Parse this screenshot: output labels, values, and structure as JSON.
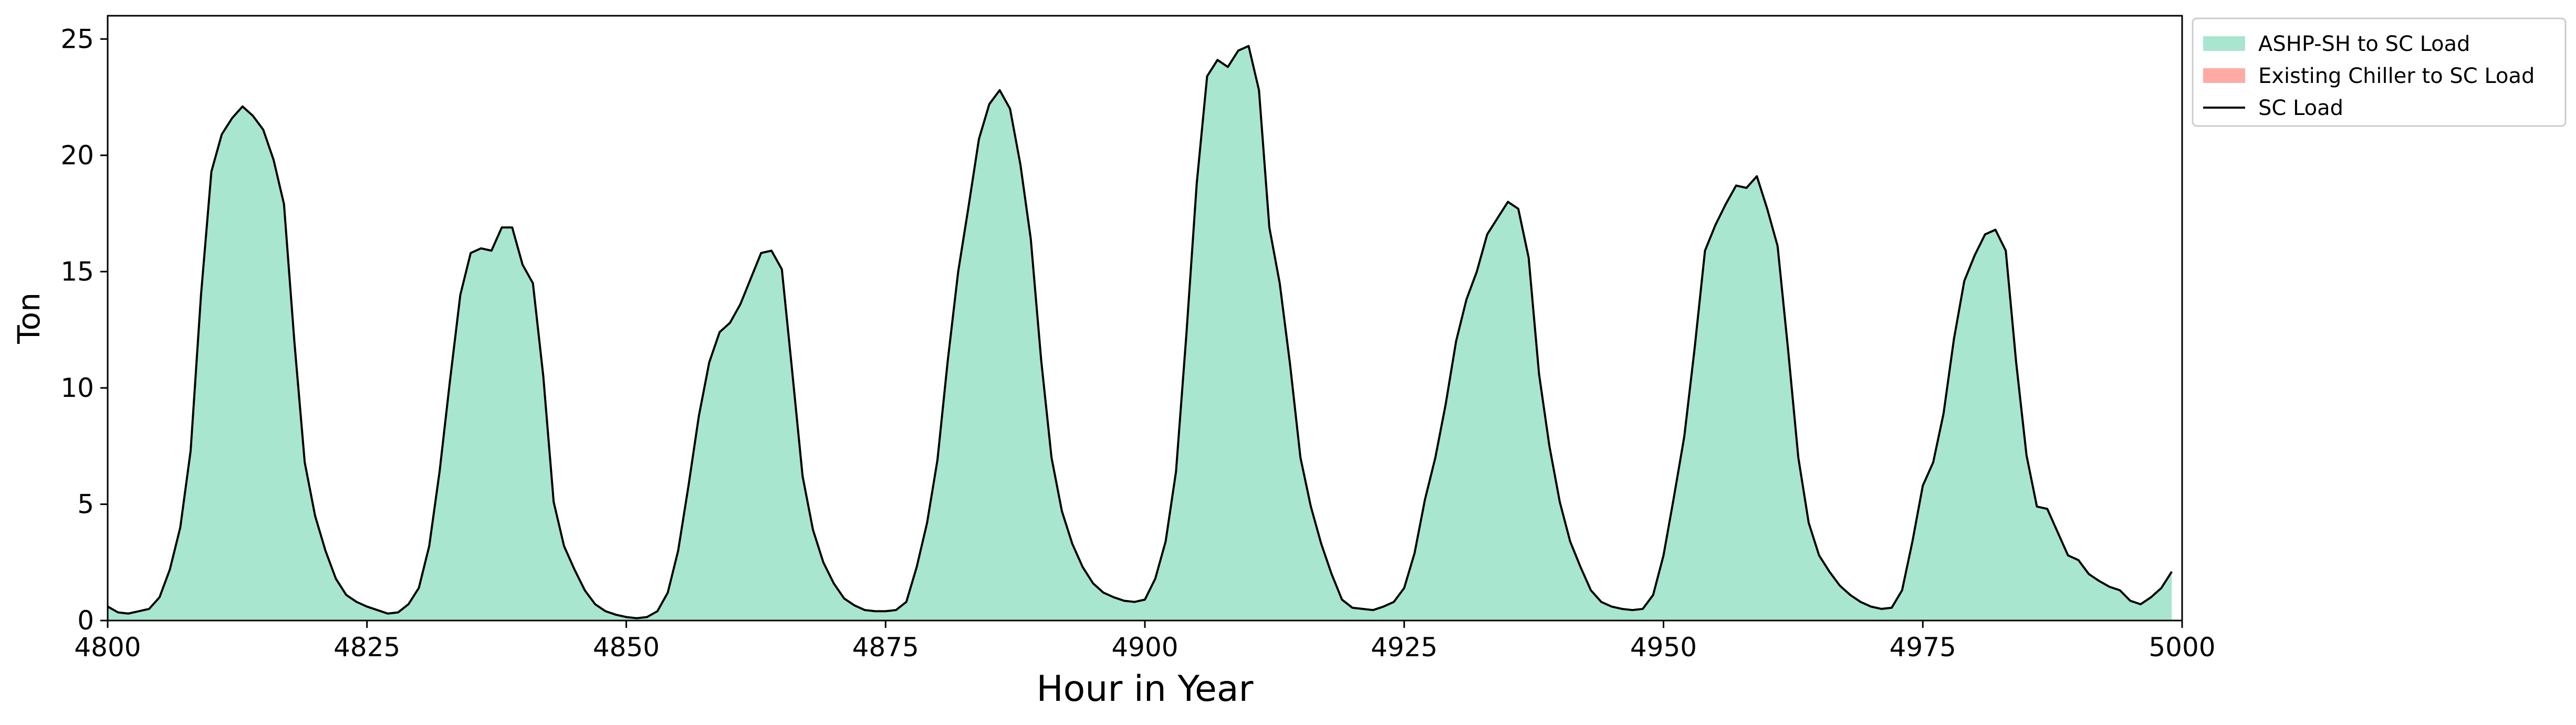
{
  "chart_data": {
    "type": "area",
    "xlabel": "Hour in Year",
    "ylabel": "Ton",
    "xlim": [
      4800,
      5000
    ],
    "ylim": [
      0,
      26
    ],
    "xticks": [
      "4800",
      "4825",
      "4850",
      "4875",
      "4900",
      "4925",
      "4950",
      "4975",
      "5000"
    ],
    "yticks": [
      "0",
      "5",
      "10",
      "15",
      "20",
      "25"
    ],
    "grid": false,
    "legend_position": "outside-top-right",
    "colors": {
      "ashp": "#a8e6cf",
      "chiller": "#ffaaa5",
      "load": "#000000"
    },
    "legend": [
      {
        "label": "ASHP-SH to SC Load",
        "kind": "patch",
        "color": "#a8e6cf"
      },
      {
        "label": "Existing Chiller to SC Load",
        "kind": "patch",
        "color": "#ffaaa5"
      },
      {
        "label": "SC Load",
        "kind": "line",
        "color": "#000000"
      }
    ],
    "x_start": 4800,
    "x_step": 1,
    "series": [
      {
        "name": "ASHP-SH to SC Load",
        "type": "area",
        "values": [
          0.6,
          0.35,
          0.3,
          0.4,
          0.5,
          1.0,
          2.2,
          4.0,
          7.3,
          14.0,
          19.3,
          20.9,
          21.6,
          22.1,
          21.7,
          21.1,
          19.8,
          17.9,
          12.0,
          6.8,
          4.5,
          3.0,
          1.8,
          1.1,
          0.8,
          0.6,
          0.45,
          0.3,
          0.35,
          0.7,
          1.4,
          3.2,
          6.4,
          10.3,
          14.0,
          15.8,
          16.0,
          15.9,
          16.9,
          16.9,
          15.3,
          14.5,
          10.5,
          5.1,
          3.2,
          2.2,
          1.3,
          0.7,
          0.4,
          0.25,
          0.15,
          0.1,
          0.15,
          0.4,
          1.2,
          3.0,
          5.8,
          8.8,
          11.1,
          12.4,
          12.8,
          13.6,
          14.7,
          15.8,
          15.9,
          15.1,
          10.7,
          6.2,
          3.9,
          2.5,
          1.6,
          0.95,
          0.65,
          0.45,
          0.4,
          0.4,
          0.45,
          0.8,
          2.3,
          4.2,
          6.9,
          11.2,
          15.0,
          17.8,
          20.7,
          22.2,
          22.8,
          22.0,
          19.6,
          16.4,
          11.2,
          7.0,
          4.7,
          3.3,
          2.3,
          1.6,
          1.2,
          1.0,
          0.85,
          0.8,
          0.9,
          1.8,
          3.4,
          6.4,
          12.3,
          18.8,
          23.4,
          24.1,
          23.8,
          24.5,
          24.7,
          22.8,
          16.9,
          14.5,
          11.0,
          7.0,
          4.9,
          3.3,
          2.0,
          0.9,
          0.55,
          0.5,
          0.45,
          0.6,
          0.8,
          1.4,
          2.9,
          5.2,
          7.0,
          9.3,
          12.0,
          13.8,
          15.0,
          16.6,
          17.3,
          18.0,
          17.7,
          15.6,
          10.6,
          7.5,
          5.1,
          3.4,
          2.3,
          1.3,
          0.8,
          0.6,
          0.5,
          0.45,
          0.5,
          1.1,
          2.8,
          5.3,
          7.9,
          11.7,
          15.9,
          17.0,
          17.9,
          18.7,
          18.6,
          19.1,
          17.7,
          16.1,
          11.7,
          7.0,
          4.2,
          2.8,
          2.1,
          1.5,
          1.1,
          0.8,
          0.6,
          0.5,
          0.55,
          1.3,
          3.4,
          5.8,
          6.8,
          8.9,
          12.1,
          14.6,
          15.7,
          16.6,
          16.8,
          15.9,
          11.1,
          7.1,
          4.9,
          4.8,
          3.8,
          2.8,
          2.6,
          2.0,
          1.7,
          1.45,
          1.3,
          0.85,
          0.7,
          1.0,
          1.4,
          2.1
        ]
      },
      {
        "name": "Existing Chiller to SC Load",
        "type": "area",
        "values": []
      },
      {
        "name": "SC Load",
        "type": "line",
        "values": [
          0.6,
          0.35,
          0.3,
          0.4,
          0.5,
          1.0,
          2.2,
          4.0,
          7.3,
          14.0,
          19.3,
          20.9,
          21.6,
          22.1,
          21.7,
          21.1,
          19.8,
          17.9,
          12.0,
          6.8,
          4.5,
          3.0,
          1.8,
          1.1,
          0.8,
          0.6,
          0.45,
          0.3,
          0.35,
          0.7,
          1.4,
          3.2,
          6.4,
          10.3,
          14.0,
          15.8,
          16.0,
          15.9,
          16.9,
          16.9,
          15.3,
          14.5,
          10.5,
          5.1,
          3.2,
          2.2,
          1.3,
          0.7,
          0.4,
          0.25,
          0.15,
          0.1,
          0.15,
          0.4,
          1.2,
          3.0,
          5.8,
          8.8,
          11.1,
          12.4,
          12.8,
          13.6,
          14.7,
          15.8,
          15.9,
          15.1,
          10.7,
          6.2,
          3.9,
          2.5,
          1.6,
          0.95,
          0.65,
          0.45,
          0.4,
          0.4,
          0.45,
          0.8,
          2.3,
          4.2,
          6.9,
          11.2,
          15.0,
          17.8,
          20.7,
          22.2,
          22.8,
          22.0,
          19.6,
          16.4,
          11.2,
          7.0,
          4.7,
          3.3,
          2.3,
          1.6,
          1.2,
          1.0,
          0.85,
          0.8,
          0.9,
          1.8,
          3.4,
          6.4,
          12.3,
          18.8,
          23.4,
          24.1,
          23.8,
          24.5,
          24.7,
          22.8,
          16.9,
          14.5,
          11.0,
          7.0,
          4.9,
          3.3,
          2.0,
          0.9,
          0.55,
          0.5,
          0.45,
          0.6,
          0.8,
          1.4,
          2.9,
          5.2,
          7.0,
          9.3,
          12.0,
          13.8,
          15.0,
          16.6,
          17.3,
          18.0,
          17.7,
          15.6,
          10.6,
          7.5,
          5.1,
          3.4,
          2.3,
          1.3,
          0.8,
          0.6,
          0.5,
          0.45,
          0.5,
          1.1,
          2.8,
          5.3,
          7.9,
          11.7,
          15.9,
          17.0,
          17.9,
          18.7,
          18.6,
          19.1,
          17.7,
          16.1,
          11.7,
          7.0,
          4.2,
          2.8,
          2.1,
          1.5,
          1.1,
          0.8,
          0.6,
          0.5,
          0.55,
          1.3,
          3.4,
          5.8,
          6.8,
          8.9,
          12.1,
          14.6,
          15.7,
          16.6,
          16.8,
          15.9,
          11.1,
          7.1,
          4.9,
          4.8,
          3.8,
          2.8,
          2.6,
          2.0,
          1.7,
          1.45,
          1.3,
          0.85,
          0.7,
          1.0,
          1.4,
          2.1
        ]
      }
    ]
  }
}
